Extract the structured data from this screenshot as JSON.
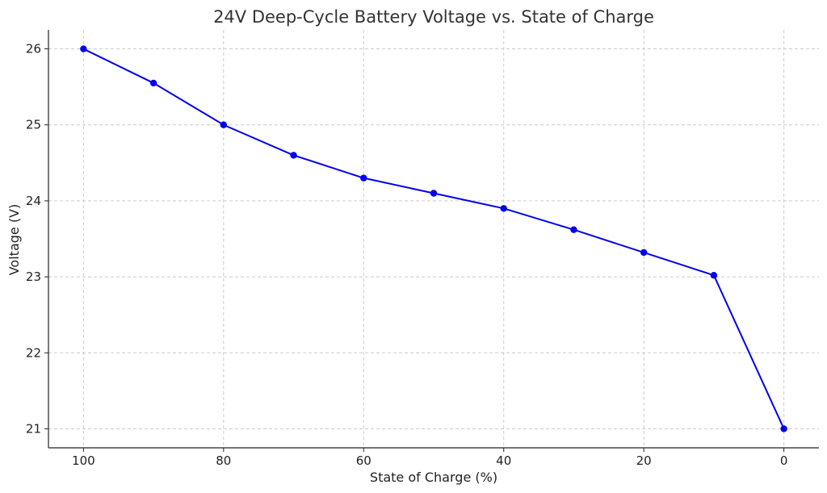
{
  "chart_data": {
    "type": "line",
    "title": "24V Deep-Cycle Battery Voltage vs. State of Charge",
    "xlabel": "State of Charge (%)",
    "ylabel": "Voltage (V)",
    "x_inverted": true,
    "xlim": [
      105,
      -5
    ],
    "ylim": [
      20.75,
      26.25
    ],
    "xticks": [
      100,
      80,
      60,
      40,
      20,
      0
    ],
    "yticks": [
      21,
      22,
      23,
      24,
      25,
      26
    ],
    "grid": true,
    "series": [
      {
        "color": "#0000ee",
        "marker": "circle",
        "x": [
          100,
          90,
          80,
          70,
          60,
          50,
          40,
          30,
          20,
          10,
          0
        ],
        "y": [
          26.0,
          25.55,
          25.0,
          24.6,
          24.3,
          24.1,
          23.9,
          23.62,
          23.32,
          23.02,
          21.0
        ]
      }
    ]
  }
}
